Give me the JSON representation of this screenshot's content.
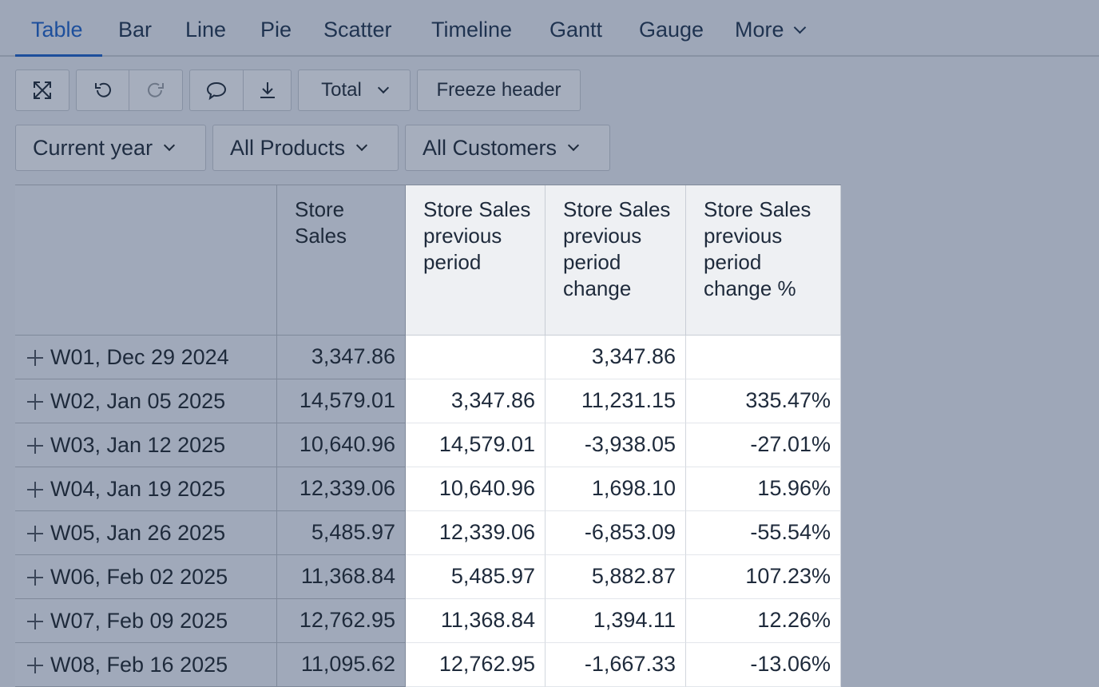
{
  "tabs": [
    {
      "label": "Table",
      "active": true
    },
    {
      "label": "Bar"
    },
    {
      "label": "Line"
    },
    {
      "label": "Pie"
    },
    {
      "label": "Scatter"
    },
    {
      "label": "Timeline"
    },
    {
      "label": "Gantt"
    },
    {
      "label": "Gauge"
    },
    {
      "label": "More"
    }
  ],
  "toolbar": {
    "icons": [
      "fullscreen-icon",
      "undo-icon",
      "redo-icon",
      "comment-icon",
      "download-icon"
    ],
    "total_label": "Total",
    "freeze_label": "Freeze header"
  },
  "filters": {
    "period": "Current year",
    "products": "All Products",
    "customers": "All Customers"
  },
  "table": {
    "headers": [
      "",
      "Store Sales",
      "Store Sales previous period",
      "Store Sales previous period change",
      "Store Sales previous period change %"
    ],
    "rows": [
      {
        "label": "W01, Dec 29 2024",
        "sales": "3,347.86",
        "prev": "",
        "change": "3,347.86",
        "pct": ""
      },
      {
        "label": "W02, Jan 05 2025",
        "sales": "14,579.01",
        "prev": "3,347.86",
        "change": "11,231.15",
        "pct": "335.47%"
      },
      {
        "label": "W03, Jan 12 2025",
        "sales": "10,640.96",
        "prev": "14,579.01",
        "change": "-3,938.05",
        "pct": "-27.01%"
      },
      {
        "label": "W04, Jan 19 2025",
        "sales": "12,339.06",
        "prev": "10,640.96",
        "change": "1,698.10",
        "pct": "15.96%"
      },
      {
        "label": "W05, Jan 26 2025",
        "sales": "5,485.97",
        "prev": "12,339.06",
        "change": "-6,853.09",
        "pct": "-55.54%"
      },
      {
        "label": "W06, Feb 02 2025",
        "sales": "11,368.84",
        "prev": "5,485.97",
        "change": "5,882.87",
        "pct": "107.23%"
      },
      {
        "label": "W07, Feb 09 2025",
        "sales": "12,762.95",
        "prev": "11,368.84",
        "change": "1,394.11",
        "pct": "12.26%"
      },
      {
        "label": "W08, Feb 16 2025",
        "sales": "11,095.62",
        "prev": "12,762.95",
        "change": "-1,667.33",
        "pct": "-13.06%"
      }
    ]
  }
}
